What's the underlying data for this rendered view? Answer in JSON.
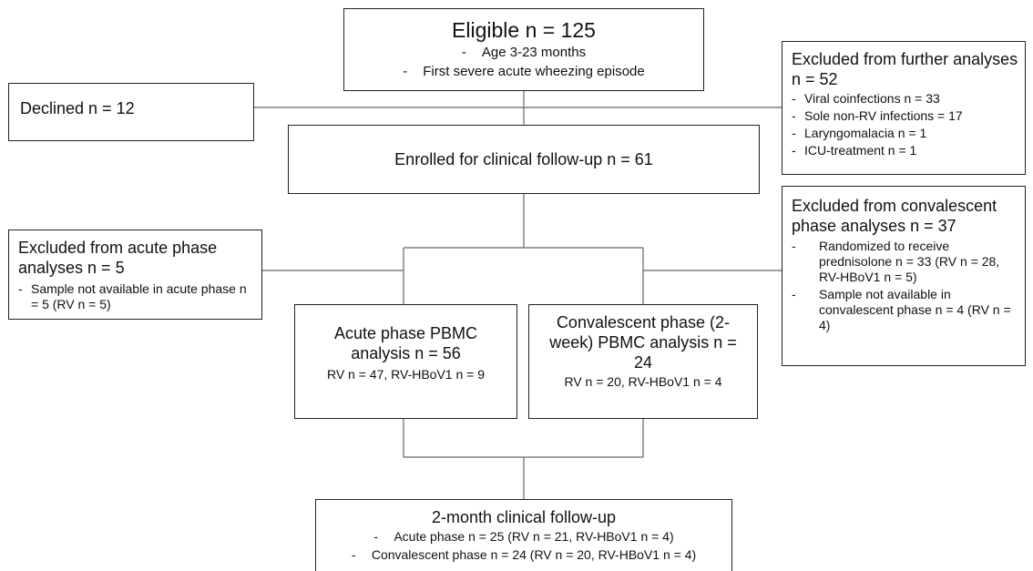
{
  "eligible": {
    "title": "Eligible n = 125",
    "criteria": [
      "Age 3-23 months",
      "First severe acute wheezing episode"
    ]
  },
  "declined": {
    "label": "Declined n = 12"
  },
  "excluded_further": {
    "title": "Excluded from further analyses n = 52",
    "items": [
      "Viral coinfections n = 33",
      "Sole non-RV infections = 17",
      "Laryngomalacia n = 1",
      "ICU-treatment n = 1"
    ]
  },
  "enrolled": {
    "label": "Enrolled for clinical follow-up n = 61"
  },
  "excluded_acute": {
    "title": "Excluded from acute phase analyses n = 5",
    "items": [
      "Sample not available in acute phase n = 5 (RV n = 5)"
    ]
  },
  "excluded_convalescent": {
    "title": "Excluded from convalescent phase analyses n = 37",
    "items": [
      "Randomized to receive prednisolone n = 33 (RV n = 28, RV-HBoV1 n = 5)",
      "Sample not available in convalescent phase n = 4 (RV n = 4)"
    ]
  },
  "acute_pbmc": {
    "title": "Acute phase PBMC analysis n = 56",
    "detail": "RV n = 47, RV-HBoV1 n = 9"
  },
  "convalescent_pbmc": {
    "title": "Convalescent phase (2-week) PBMC analysis n = 24",
    "detail": "RV n = 20, RV-HBoV1 n = 4"
  },
  "followup": {
    "title": "2-month clinical follow-up",
    "items": [
      "Acute phase n = 25 (RV n = 21, RV-HBoV1 n = 4)",
      "Convalescent phase n = 24 (RV n = 20, RV-HBoV1 n = 4)"
    ]
  }
}
